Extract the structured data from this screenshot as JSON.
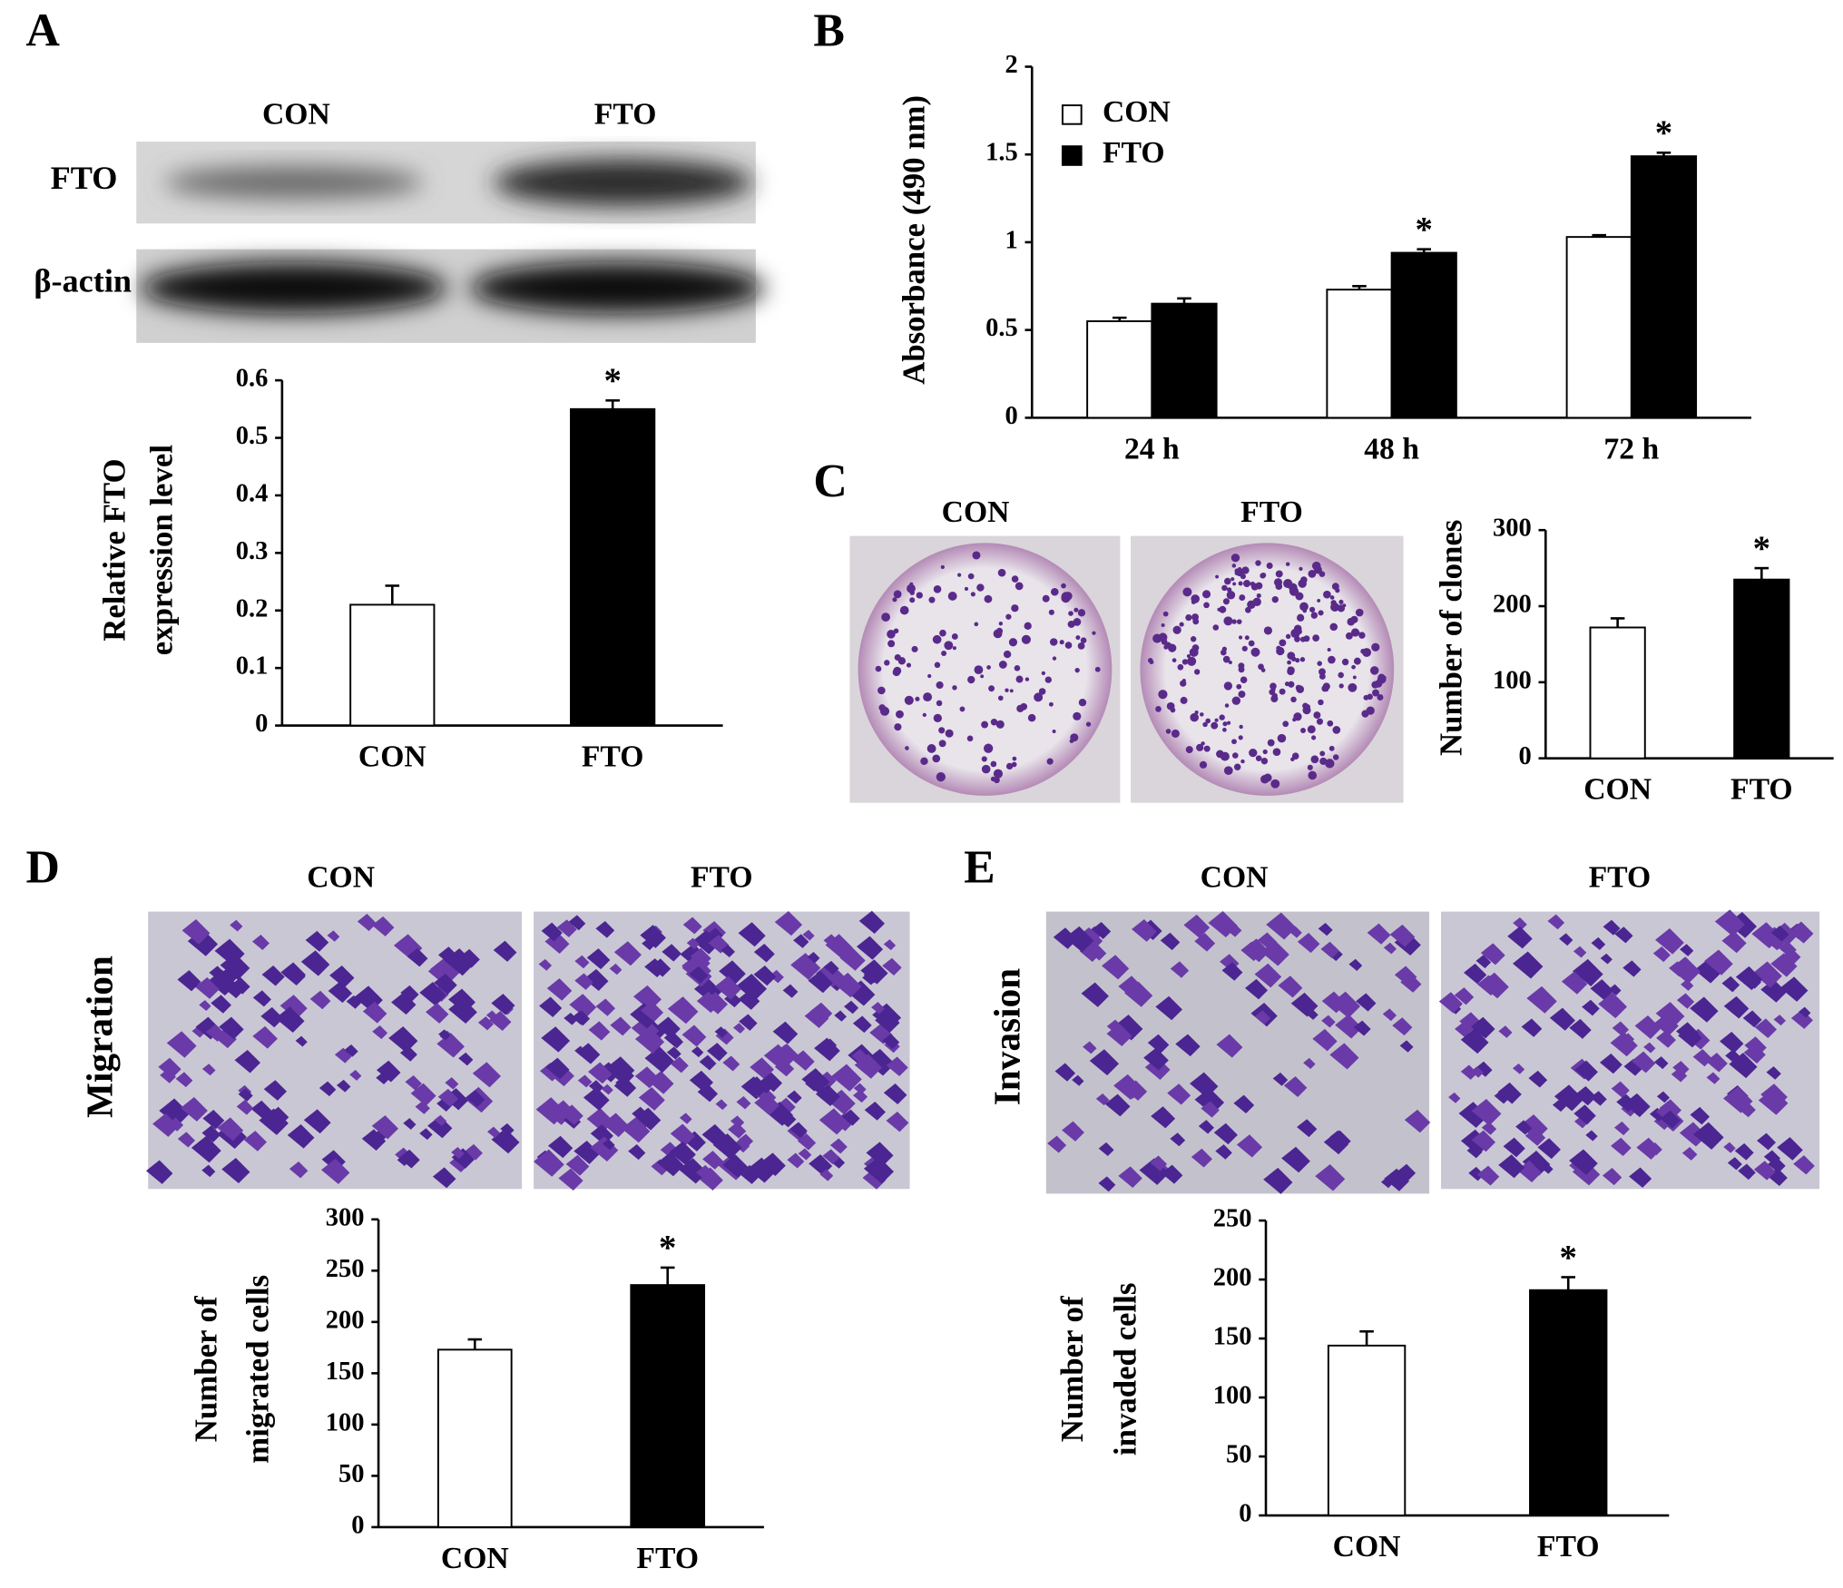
{
  "panels": {
    "letters": [
      "A",
      "B",
      "C",
      "D",
      "E"
    ],
    "blot": {
      "columns": [
        "CON",
        "FTO"
      ],
      "rows": [
        "FTO",
        "β-actin"
      ]
    },
    "colony": {
      "columns": [
        "CON",
        "FTO"
      ]
    },
    "migration": {
      "title": "Migration",
      "columns": [
        "CON",
        "FTO"
      ]
    },
    "invasion": {
      "title": "Invasion",
      "columns": [
        "CON",
        "FTO"
      ]
    }
  },
  "chart_data": [
    {
      "type": "bar",
      "ylabel": [
        "Relative FTO",
        "expression level"
      ],
      "categories": [
        "CON",
        "FTO"
      ],
      "values": [
        0.21,
        0.55
      ],
      "errors": [
        0.033,
        0.015
      ],
      "colors": [
        "#ffffff",
        "#000000"
      ],
      "ylim": [
        0,
        0.6
      ],
      "yticks": [
        0,
        0.1,
        0.2,
        0.3,
        0.4,
        0.5,
        0.6
      ],
      "annotations": [
        {
          "text": "*",
          "category": "FTO"
        }
      ]
    },
    {
      "type": "bar",
      "ylabel": [
        "Absorbance (490 nm)"
      ],
      "categories": [
        "24 h",
        "48 h",
        "72 h"
      ],
      "series": [
        {
          "name": "CON",
          "color": "#ffffff",
          "values": [
            0.55,
            0.73,
            1.03
          ],
          "errors": [
            0.02,
            0.02,
            0.01
          ]
        },
        {
          "name": "FTO",
          "color": "#000000",
          "values": [
            0.65,
            0.94,
            1.49
          ],
          "errors": [
            0.03,
            0.02,
            0.02
          ]
        }
      ],
      "ylim": [
        0,
        2
      ],
      "yticks": [
        0,
        0.5,
        1,
        1.5,
        2
      ],
      "legend": "top-left",
      "annotations": [
        {
          "text": "*",
          "series": "FTO",
          "category": "48 h"
        },
        {
          "text": "*",
          "series": "FTO",
          "category": "72 h"
        }
      ]
    },
    {
      "type": "bar",
      "ylabel": [
        "Number of clones"
      ],
      "categories": [
        "CON",
        "FTO"
      ],
      "values": [
        172,
        235
      ],
      "errors": [
        12,
        15
      ],
      "colors": [
        "#ffffff",
        "#000000"
      ],
      "ylim": [
        0,
        300
      ],
      "yticks": [
        0,
        100,
        200,
        300
      ],
      "annotations": [
        {
          "text": "*",
          "category": "FTO"
        }
      ]
    },
    {
      "type": "bar",
      "ylabel": [
        "Number of",
        "migrated  cells"
      ],
      "categories": [
        "CON",
        "FTO"
      ],
      "values": [
        173,
        236
      ],
      "errors": [
        10,
        17
      ],
      "colors": [
        "#ffffff",
        "#000000"
      ],
      "ylim": [
        0,
        300
      ],
      "yticks": [
        0,
        50,
        100,
        150,
        200,
        250,
        300
      ],
      "annotations": [
        {
          "text": "*",
          "category": "FTO"
        }
      ]
    },
    {
      "type": "bar",
      "ylabel": [
        "Number of",
        "invaded cells"
      ],
      "categories": [
        "CON",
        "FTO"
      ],
      "values": [
        144,
        191
      ],
      "errors": [
        12,
        11
      ],
      "colors": [
        "#ffffff",
        "#000000"
      ],
      "ylim": [
        0,
        250
      ],
      "yticks": [
        0,
        50,
        100,
        150,
        200,
        250
      ],
      "annotations": [
        {
          "text": "*",
          "category": "FTO"
        }
      ]
    }
  ]
}
